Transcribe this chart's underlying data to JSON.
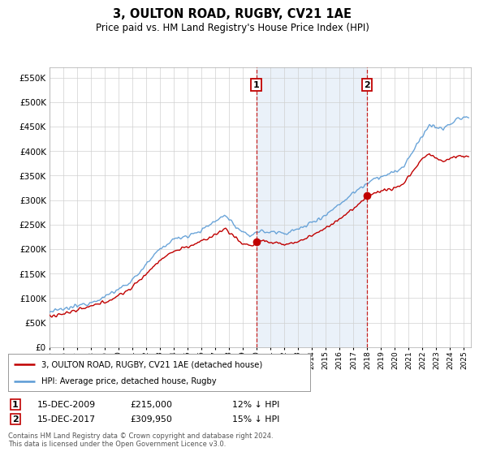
{
  "title": "3, OULTON ROAD, RUGBY, CV21 1AE",
  "subtitle": "Price paid vs. HM Land Registry's House Price Index (HPI)",
  "ylim": [
    0,
    570000
  ],
  "xlim_start": 1995.0,
  "xlim_end": 2025.5,
  "hpi_color": "#5b9bd5",
  "price_color": "#c00000",
  "marker1_date": 2009.96,
  "marker1_price": 215000,
  "marker1_label": "1",
  "marker2_date": 2017.96,
  "marker2_price": 309950,
  "marker2_label": "2",
  "vline1_x": 2009.96,
  "vline2_x": 2017.96,
  "legend_label1": "3, OULTON ROAD, RUGBY, CV21 1AE (detached house)",
  "legend_label2": "HPI: Average price, detached house, Rugby",
  "footer": "Contains HM Land Registry data © Crown copyright and database right 2024.\nThis data is licensed under the Open Government Licence v3.0.",
  "shade_color": "#dce8f5",
  "plot_bg": "#ffffff",
  "fig_bg": "#ffffff",
  "grid_color": "#d0d0d0",
  "ann1_date": "15-DEC-2009",
  "ann1_price": "£215,000",
  "ann1_pct": "12% ↓ HPI",
  "ann2_date": "15-DEC-2017",
  "ann2_price": "£309,950",
  "ann2_pct": "15% ↓ HPI"
}
